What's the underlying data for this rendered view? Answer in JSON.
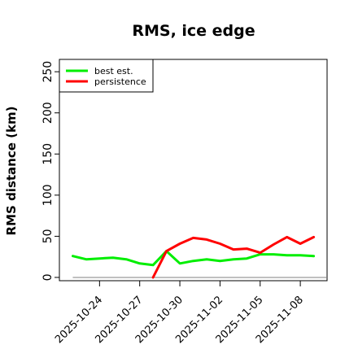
{
  "chart_data": {
    "type": "line",
    "title": "RMS, ice edge",
    "xlabel": "",
    "ylabel": "RMS distance (km)",
    "ylim": [
      -4,
      265
    ],
    "yticks": [
      0,
      50,
      100,
      150,
      200,
      250
    ],
    "ytick_labels": [
      "0",
      "50",
      "100",
      "150",
      "200",
      "250"
    ],
    "xlim": [
      "2025-10-21",
      "2025-11-10"
    ],
    "xticks": [
      "2025-10-24",
      "2025-10-27",
      "2025-10-30",
      "2025-11-02",
      "2025-11-05",
      "2025-11-08"
    ],
    "xtick_labels": [
      "2025-10-24",
      "2025-10-27",
      "2025-10-30",
      "2025-11-02",
      "2025-11-05",
      "2025-11-08"
    ],
    "grid": false,
    "legend_position": "top-left",
    "baseline": {
      "y": 0,
      "x_range": [
        "2025-10-22",
        "2025-11-10"
      ],
      "color": "#808080"
    },
    "series": [
      {
        "name": "best est.",
        "color": "#00ee00",
        "x": [
          "2025-10-22",
          "2025-10-23",
          "2025-10-24",
          "2025-10-25",
          "2025-10-26",
          "2025-10-27",
          "2025-10-28",
          "2025-10-29",
          "2025-10-30",
          "2025-10-31",
          "2025-11-01",
          "2025-11-02",
          "2025-11-03",
          "2025-11-04",
          "2025-11-05",
          "2025-11-06",
          "2025-11-07",
          "2025-11-08",
          "2025-11-09"
        ],
        "y": [
          26,
          22,
          23,
          24,
          22,
          17,
          15,
          32,
          17,
          20,
          22,
          20,
          22,
          23,
          28,
          28,
          27,
          27,
          26
        ]
      },
      {
        "name": "persistence",
        "color": "#ff0000",
        "x": [
          "2025-10-28",
          "2025-10-29",
          "2025-10-30",
          "2025-10-31",
          "2025-11-01",
          "2025-11-02",
          "2025-11-03",
          "2025-11-04",
          "2025-11-05",
          "2025-11-06",
          "2025-11-07",
          "2025-11-08",
          "2025-11-09"
        ],
        "y": [
          0,
          32,
          41,
          48,
          46,
          41,
          34,
          35,
          30,
          40,
          49,
          41,
          49
        ]
      }
    ]
  }
}
